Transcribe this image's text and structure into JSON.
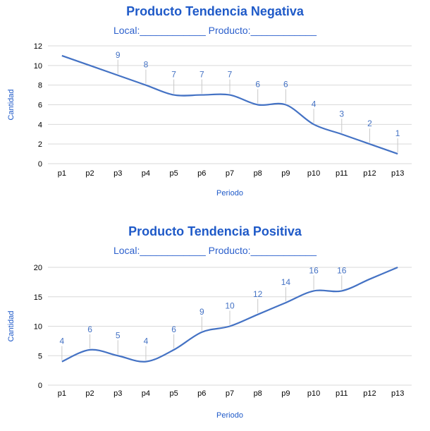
{
  "colors": {
    "line": "#4472c4",
    "text": "#1f5ac8",
    "grid": "#d9d9d9",
    "axis": "#000000"
  },
  "chart_data": [
    {
      "type": "line",
      "title": "Producto Tendencia Negativa",
      "subtitle": "Local:____________ Producto:____________",
      "xlabel": "Periodo",
      "ylabel": "Cantidad",
      "ylim": [
        0,
        12
      ],
      "yticks": [
        0,
        2,
        4,
        6,
        8,
        10,
        12
      ],
      "grid": true,
      "smooth": true,
      "categories": [
        "p1",
        "p2",
        "p3",
        "p4",
        "p5",
        "p6",
        "p7",
        "p8",
        "p9",
        "p10",
        "p11",
        "p12",
        "p13"
      ],
      "series": [
        {
          "values": [
            11,
            10,
            9,
            8,
            7,
            7,
            7,
            6,
            6,
            4,
            3,
            2,
            1
          ],
          "data_labels": [
            "",
            "",
            "9",
            "8",
            "7",
            "7",
            "7",
            "6",
            "6",
            "4",
            "3",
            "2",
            "1"
          ]
        }
      ]
    },
    {
      "type": "line",
      "title": "Producto Tendencia Positiva",
      "subtitle": "Local:____________ Producto:____________",
      "xlabel": "Periodo",
      "ylabel": "Cantidad",
      "ylim": [
        0,
        20
      ],
      "yticks": [
        0,
        5,
        10,
        15,
        20
      ],
      "grid": true,
      "smooth": true,
      "categories": [
        "p1",
        "p2",
        "p3",
        "p4",
        "p5",
        "p6",
        "p7",
        "p8",
        "p9",
        "p10",
        "p11",
        "p12",
        "p13"
      ],
      "series": [
        {
          "values": [
            4,
            6,
            5,
            4,
            6,
            9,
            10,
            12,
            14,
            16,
            16,
            18,
            20
          ],
          "data_labels": [
            "4",
            "6",
            "5",
            "4",
            "6",
            "9",
            "10",
            "12",
            "14",
            "16",
            "16",
            "",
            ""
          ]
        }
      ]
    }
  ]
}
